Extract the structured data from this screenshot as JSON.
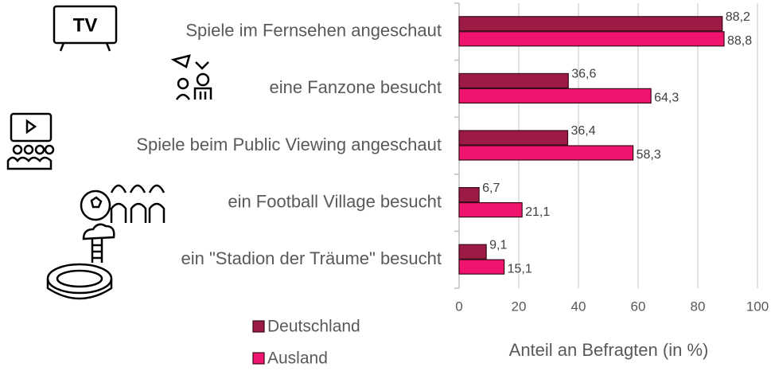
{
  "chart_data": {
    "type": "hbar",
    "categories": [
      "Spiele im Fernsehen angeschaut",
      "eine Fanzone besucht",
      "Spiele beim Public Viewing angeschaut",
      "ein Football Village besucht",
      "ein \"Stadion der Träume\" besucht"
    ],
    "series": [
      {
        "name": "Deutschland",
        "color": "#9b1b45",
        "values": [
          88.2,
          36.6,
          36.4,
          6.7,
          9.1
        ],
        "value_labels": [
          "88,2",
          "36,6",
          "36,4",
          "6,7",
          "9,1"
        ]
      },
      {
        "name": "Ausland",
        "color": "#f0146e",
        "values": [
          88.8,
          64.3,
          58.3,
          21.1,
          15.1
        ],
        "value_labels": [
          "88,8",
          "64,3",
          "58,3",
          "21,1",
          "15,1"
        ]
      }
    ],
    "xlabel": "Anteil an Befragten (in %)",
    "xlim": [
      0,
      100
    ],
    "xticks": [
      0,
      20,
      40,
      60,
      80,
      100
    ],
    "grid": true,
    "icons": {
      "tv_icon": "TV"
    }
  }
}
